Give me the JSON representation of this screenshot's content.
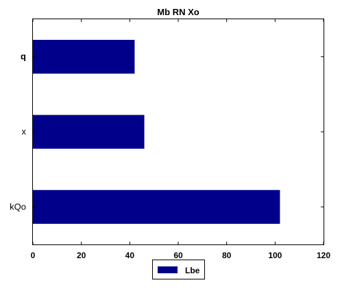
{
  "chart_data": {
    "type": "bar",
    "orientation": "horizontal",
    "title": "Mb RN Xo",
    "categories": [
      "kQo",
      "x",
      "q"
    ],
    "series": [
      {
        "name": "Lbe",
        "values": [
          102,
          46,
          42
        ],
        "color": "#00008b"
      }
    ],
    "xlabel": "",
    "ylabel": "",
    "xlim": [
      0,
      120
    ],
    "xticks": [
      "0",
      "20",
      "40",
      "60",
      "80",
      "100",
      "120"
    ],
    "grid": false,
    "legend_position": "bottom-center"
  }
}
